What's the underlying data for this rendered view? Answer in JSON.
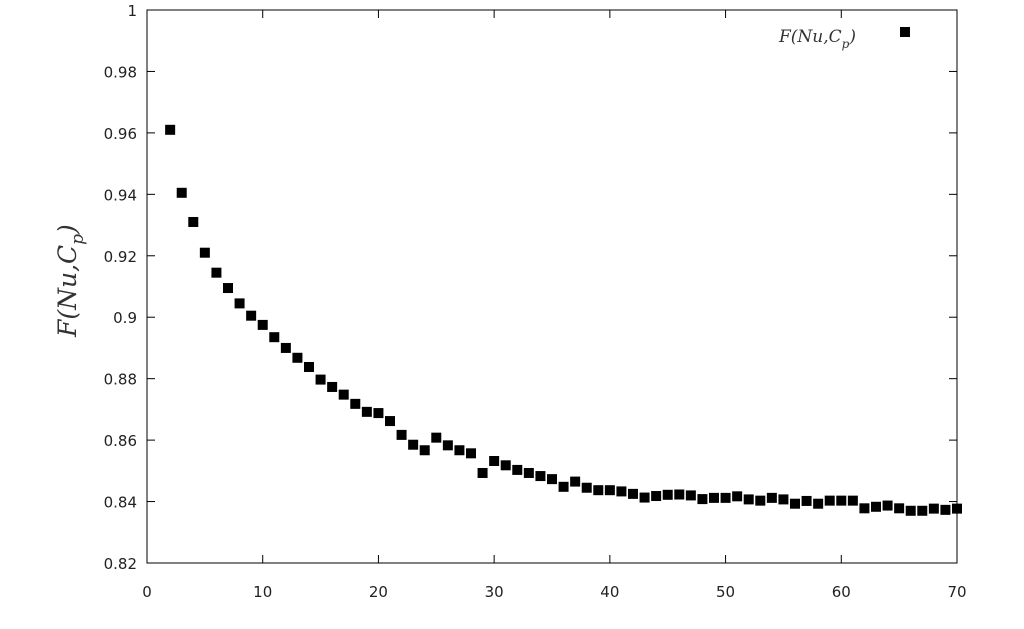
{
  "chart_data": {
    "type": "scatter",
    "title": "",
    "xlabel": "",
    "ylabel": {
      "base": "F(Nu,C",
      "sub": "p",
      "close": ")"
    },
    "xlim": [
      0,
      70
    ],
    "ylim": [
      0.82,
      1.0
    ],
    "x_ticks": [
      0,
      10,
      20,
      30,
      40,
      50,
      60,
      70
    ],
    "y_ticks": [
      0.82,
      0.84,
      0.86,
      0.88,
      0.9,
      0.92,
      0.94,
      0.96,
      0.98,
      1
    ],
    "y_tick_labels": [
      "0.82",
      "0.84",
      "0.86",
      "0.88",
      "0.9",
      "0.92",
      "0.94",
      "0.96",
      "0.98",
      "1"
    ],
    "grid": false,
    "legend_position": "top-right",
    "series": [
      {
        "name": {
          "base": "F(Nu,C",
          "sub": "p",
          "close": ")"
        },
        "marker": "square",
        "color": "#000000",
        "x": [
          2,
          3,
          4,
          5,
          6,
          7,
          8,
          9,
          10,
          11,
          12,
          13,
          14,
          15,
          16,
          17,
          18,
          19,
          20,
          21,
          22,
          23,
          24,
          25,
          26,
          27,
          28,
          29,
          30,
          31,
          32,
          33,
          34,
          35,
          36,
          37,
          38,
          39,
          40,
          41,
          42,
          43,
          44,
          45,
          46,
          47,
          48,
          49,
          50,
          51,
          52,
          53,
          54,
          55,
          56,
          57,
          58,
          59,
          60,
          61,
          62,
          63,
          64,
          65,
          66,
          67,
          68,
          69,
          70
        ],
        "y": [
          0.961,
          0.9405,
          0.931,
          0.921,
          0.9145,
          0.9095,
          0.9045,
          0.9005,
          0.8975,
          0.8935,
          0.89,
          0.8868,
          0.8838,
          0.8797,
          0.8773,
          0.8748,
          0.8718,
          0.8692,
          0.8688,
          0.8662,
          0.8617,
          0.8585,
          0.8567,
          0.8608,
          0.8583,
          0.8567,
          0.8557,
          0.8493,
          0.8532,
          0.8518,
          0.8503,
          0.8493,
          0.8483,
          0.8473,
          0.8448,
          0.8465,
          0.8445,
          0.8437,
          0.8437,
          0.8433,
          0.8425,
          0.8413,
          0.8418,
          0.8422,
          0.8423,
          0.842,
          0.8408,
          0.8412,
          0.8412,
          0.8417,
          0.8407,
          0.8403,
          0.8412,
          0.8407,
          0.8393,
          0.8402,
          0.8393,
          0.8403,
          0.8403,
          0.8403,
          0.8378,
          0.8383,
          0.8387,
          0.8378,
          0.837,
          0.837,
          0.8377,
          0.8373,
          0.8377
        ]
      }
    ]
  }
}
